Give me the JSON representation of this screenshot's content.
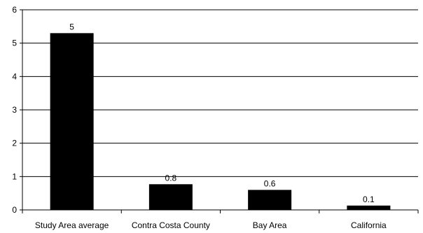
{
  "chart_data": {
    "type": "bar",
    "categories": [
      "Study Area average",
      "Contra Costa County",
      "Bay Area",
      "California"
    ],
    "values": [
      5.3,
      0.77,
      0.6,
      0.13
    ],
    "data_labels": [
      "5",
      "0.8",
      "0.6",
      "0.1"
    ],
    "title": "",
    "xlabel": "",
    "ylabel": "",
    "ylim": [
      0,
      6
    ],
    "yticks": [
      "0",
      "1",
      "2",
      "3",
      "4",
      "5",
      "6"
    ],
    "grid": true,
    "bar_color": "#000000",
    "gridline_color": "#000000"
  }
}
